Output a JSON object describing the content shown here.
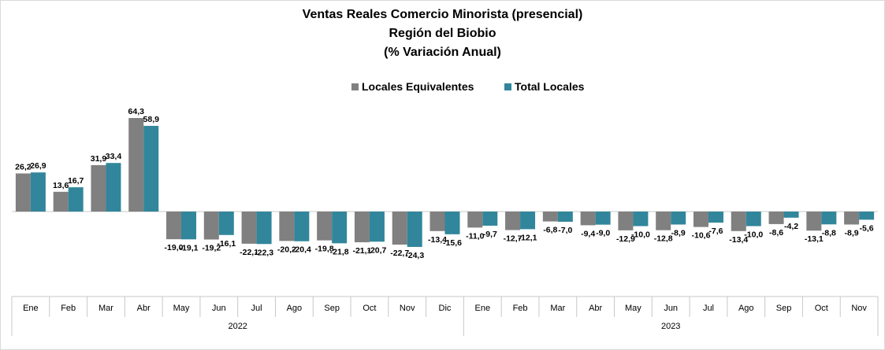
{
  "title": {
    "line1": "Ventas Reales Comercio Minorista (presencial)",
    "line2": "Región del Biobio",
    "line3": "(% Variación Anual)"
  },
  "colors": {
    "series1": "#808080",
    "series2": "#31869b"
  },
  "chart_data": {
    "type": "bar",
    "title": "Ventas Reales Comercio Minorista (presencial) Región del Biobio (% Variación Anual)",
    "categories": [
      "Ene",
      "Feb",
      "Mar",
      "Abr",
      "May",
      "Jun",
      "Jul",
      "Ago",
      "Sep",
      "Oct",
      "Nov",
      "Dic",
      "Ene",
      "Feb",
      "Mar",
      "Abr",
      "May",
      "Jun",
      "Jul",
      "Ago",
      "Sep",
      "Oct",
      "Nov"
    ],
    "category_groups": [
      {
        "label": "2022",
        "count": 12
      },
      {
        "label": "2023",
        "count": 11
      }
    ],
    "series": [
      {
        "name": "Locales Equivalentes",
        "values": [
          26.2,
          13.6,
          31.9,
          64.3,
          -19.0,
          -19.2,
          -22.1,
          -20.2,
          -19.8,
          -21.1,
          -22.7,
          -13.4,
          -11.0,
          -12.7,
          -6.8,
          -9.4,
          -12.9,
          -12.8,
          -10.6,
          -13.4,
          -8.6,
          -13.1,
          -8.9
        ],
        "labels": [
          "26,2",
          "13,6",
          "31,9",
          "64,3",
          "-19,0",
          "-19,2",
          "-22,1",
          "-20,2",
          "-19,8",
          "-21,1",
          "-22,7",
          "-13,4",
          "-11,0",
          "-12,7",
          "-6,8",
          "-9,4",
          "-12,9",
          "-12,8",
          "-10,6",
          "-13,4",
          "-8,6",
          "-13,1",
          "-8,9"
        ]
      },
      {
        "name": "Total Locales",
        "values": [
          26.9,
          16.7,
          33.4,
          58.9,
          -19.1,
          -16.1,
          -22.3,
          -20.4,
          -21.8,
          -20.7,
          -24.3,
          -15.6,
          -9.7,
          -12.1,
          -7.0,
          -9.0,
          -10.0,
          -8.9,
          -7.6,
          -10.0,
          -4.2,
          -8.8,
          -5.6
        ],
        "labels": [
          "26,9",
          "16,7",
          "33,4",
          "58,9",
          "-19,1",
          "-16,1",
          "-22,3",
          "-20,4",
          "-21,8",
          "-20,7",
          "-24,3",
          "-15,6",
          "-9,7",
          "-12,1",
          "-7,0",
          "-9,0",
          "-10,0",
          "-8,9",
          "-7,6",
          "-10,0",
          "-4,2",
          "-8,8",
          "-5,6"
        ]
      }
    ],
    "ylim": [
      -40,
      80
    ],
    "legend_position": "top-center",
    "grid": false
  }
}
